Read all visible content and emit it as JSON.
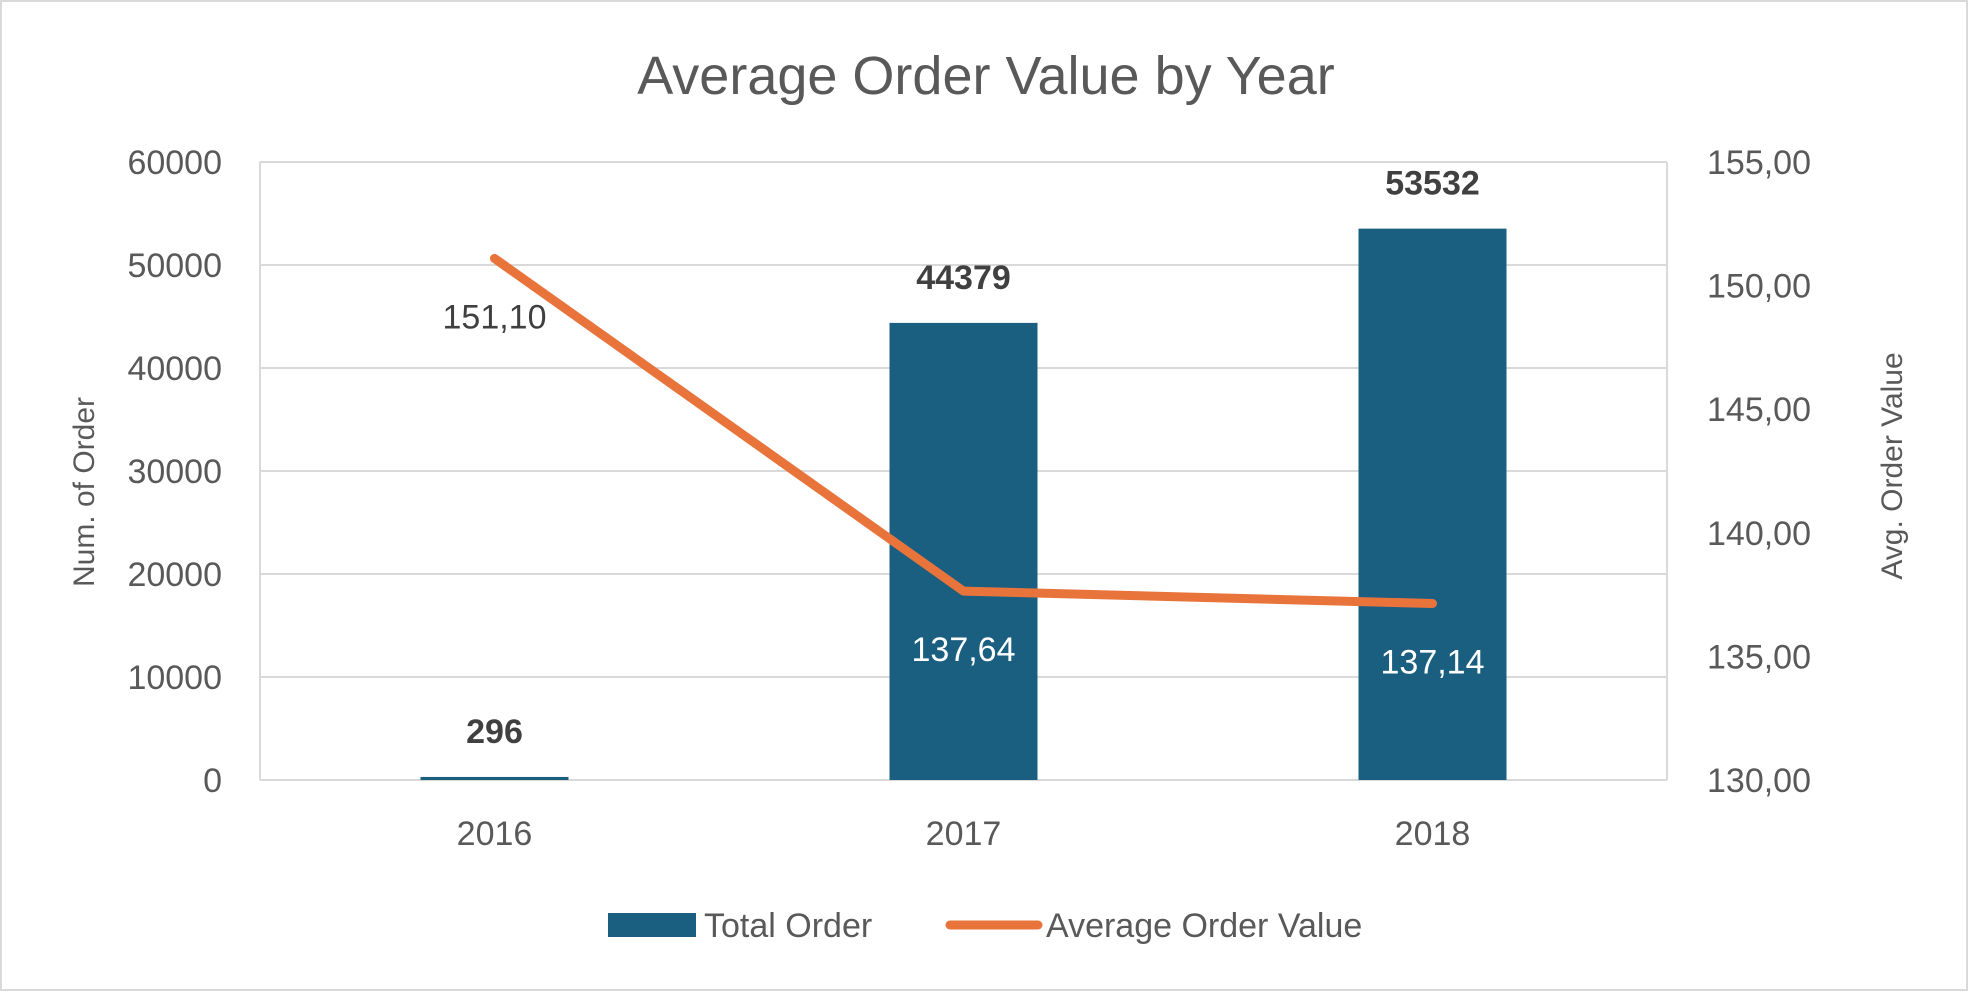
{
  "chart_data": {
    "type": "bar",
    "title": "Average Order Value by Year",
    "categories": [
      "2016",
      "2017",
      "2018"
    ],
    "ylabel": "Num. of Order",
    "y2label": "Avg. Order Value",
    "ylim": [
      0,
      60000
    ],
    "y2lim": [
      130,
      155
    ],
    "y_ticks": [
      "0",
      "10000",
      "20000",
      "30000",
      "40000",
      "50000",
      "60000"
    ],
    "y2_ticks": [
      "130,00",
      "135,00",
      "140,00",
      "145,00",
      "150,00",
      "155,00"
    ],
    "grid": true,
    "legend_position": "bottom",
    "series": [
      {
        "name": "Total Order",
        "type": "bar",
        "axis": "left",
        "color": "#1a5e80",
        "values": [
          296,
          44379,
          53532
        ],
        "labels": [
          "296",
          "44379",
          "53532"
        ]
      },
      {
        "name": "Average Order Value",
        "type": "line",
        "axis": "right",
        "color": "#e8743b",
        "values": [
          151.1,
          137.64,
          137.14
        ],
        "labels": [
          "151,10",
          "137,64",
          "137,14"
        ]
      }
    ]
  }
}
